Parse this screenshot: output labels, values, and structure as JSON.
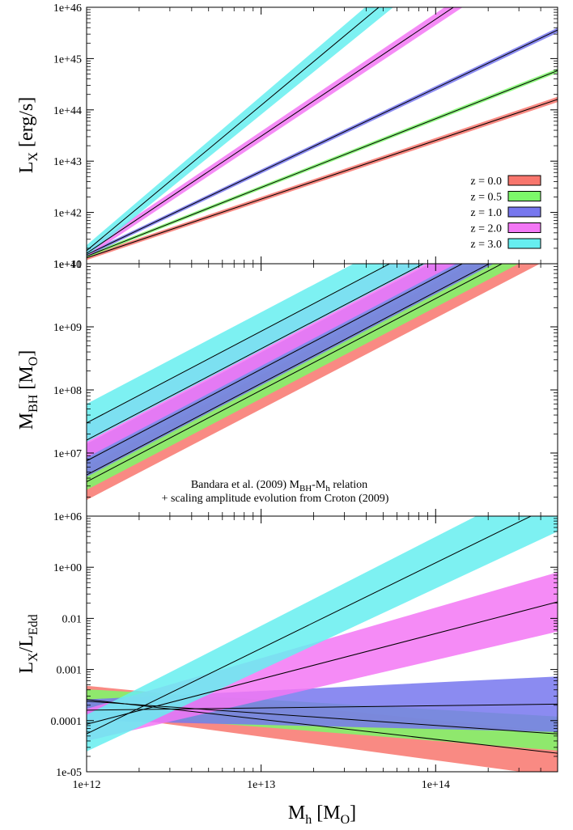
{
  "chart_data": [
    {
      "type": "line",
      "panel": "top",
      "ylabel": "L",
      "ylabel_sub": "X",
      "ylabel_rest": " [erg/s]",
      "xscale": "log",
      "yscale": "log",
      "xlim": [
        1000000000000.0,
        500000000000000.0
      ],
      "ylim": [
        1e+41,
        1e+46
      ],
      "yticks": [
        "1e+41",
        "1e+42",
        "1e+43",
        "1e+44",
        "1e+45",
        "1e+46"
      ],
      "legend_position": "bottom-right",
      "series": [
        {
          "name": "z = 0.0",
          "color": "#f8766d",
          "x": [
            1000000000000.0,
            500000000000000.0
          ],
          "y": [
            1.3e+41,
            1.6e+44
          ],
          "y_low": [
            1.18e+41,
            1.42e+44
          ],
          "y_high": [
            1.42e+41,
            1.8e+44
          ]
        },
        {
          "name": "z = 0.5",
          "color": "#7cf86a",
          "x": [
            1000000000000.0,
            500000000000000.0
          ],
          "y": [
            1.4e+41,
            5.8e+44
          ],
          "y_low": [
            1.3e+41,
            5.3e+44
          ],
          "y_high": [
            1.5e+41,
            6.4e+44
          ]
        },
        {
          "name": "z = 1.0",
          "color": "#7777ee",
          "x": [
            1000000000000.0,
            500000000000000.0
          ],
          "y": [
            1.5e+41,
            3.6e+45
          ],
          "y_low": [
            1.38e+41,
            3.2e+45
          ],
          "y_high": [
            1.62e+41,
            4e+45
          ]
        },
        {
          "name": "z = 2.0",
          "color": "#f377f5",
          "x": [
            1000000000000.0,
            500000000000000.0
          ],
          "y": [
            1.6e+41,
            2.3e+47
          ],
          "y_low": [
            1.35e+41,
            1.7e+47
          ],
          "y_high": [
            1.9e+41,
            3.1e+47
          ]
        },
        {
          "name": "z = 3.0",
          "color": "#66eef0",
          "x": [
            1000000000000.0,
            500000000000000.0
          ],
          "y": [
            1.8e+41,
            8e+48
          ],
          "y_low": [
            1.4e+41,
            4e+48
          ],
          "y_high": [
            2.3e+41,
            1.6e+49
          ]
        }
      ]
    },
    {
      "type": "line",
      "panel": "middle",
      "ylabel": "M",
      "ylabel_sub": "BH",
      "ylabel_rest": " [M",
      "ylabel_sub2": "O",
      "ylabel_end": "]",
      "xscale": "log",
      "yscale": "log",
      "xlim": [
        1000000000000.0,
        500000000000000.0
      ],
      "ylim": [
        1000000.0,
        10000000000.0
      ],
      "yticks": [
        "1e+06",
        "1e+07",
        "1e+08",
        "1e+09",
        "1e+10"
      ],
      "annotation_line1_pre": "Bandara et al. (2009) M",
      "annotation_line1_sub1": "BH",
      "annotation_line1_mid": "-M",
      "annotation_line1_sub2": "h",
      "annotation_line1_post": " relation",
      "annotation_line2": "+ scaling amplitude evolution from Croton (2009)",
      "series": [
        {
          "name": "z = 0.0",
          "color": "#f8766d",
          "x": [
            1000000000000.0,
            500000000000000.0
          ],
          "y": [
            3500000.0,
            29000000000.0
          ],
          "y_low": [
            1800000.0,
            14000000000.0
          ],
          "y_high": [
            6000000.0,
            52000000000.0
          ]
        },
        {
          "name": "z = 0.5",
          "color": "#7cf86a",
          "x": [
            1000000000000.0,
            500000000000000.0
          ],
          "y": [
            4500000.0,
            37000000000.0
          ],
          "y_low": [
            2600000.0,
            21000000000.0
          ],
          "y_high": [
            8000000.0,
            66000000000.0
          ]
        },
        {
          "name": "z = 1.0",
          "color": "#7777ee",
          "x": [
            1000000000000.0,
            500000000000000.0
          ],
          "y": [
            7500000.0,
            62000000000.0
          ],
          "y_low": [
            4200000.0,
            34000000000.0
          ],
          "y_high": [
            14000000.0,
            115000000000.0
          ]
        },
        {
          "name": "z = 2.0",
          "color": "#f377f5",
          "x": [
            1000000000000.0,
            500000000000000.0
          ],
          "y": [
            16000000.0,
            130000000000.0
          ],
          "y_low": [
            8500000.0,
            70000000000.0
          ],
          "y_high": [
            30000000.0,
            240000000000.0
          ]
        },
        {
          "name": "z = 3.0",
          "color": "#66eef0",
          "x": [
            1000000000000.0,
            500000000000000.0
          ],
          "y": [
            30000000.0,
            250000000000.0
          ],
          "y_low": [
            15000000.0,
            125000000000.0
          ],
          "y_high": [
            60000000.0,
            500000000000.0
          ]
        }
      ]
    },
    {
      "type": "line",
      "panel": "bottom",
      "ylabel": "L",
      "ylabel_sub": "X",
      "ylabel_rest": "/L",
      "ylabel_sub2": "Edd",
      "xlabel": "M",
      "xlabel_sub": "h",
      "xlabel_rest": " [M",
      "xlabel_sub2": "O",
      "xlabel_end": "]",
      "xscale": "log",
      "yscale": "log",
      "xlim": [
        1000000000000.0,
        500000000000000.0
      ],
      "ylim": [
        1e-05,
        1
      ],
      "xticks": [
        "1e+12",
        "1e+13",
        "1e+14"
      ],
      "yticks": [
        "1e-05",
        "0.0001",
        "0.001",
        "0.01",
        "1e+00"
      ],
      "series": [
        {
          "name": "z = 0.0",
          "color": "#f8766d",
          "x": [
            1000000000000.0,
            500000000000000.0
          ],
          "y": [
            0.00026,
            2.3e-05
          ],
          "y_low": [
            0.00014,
            8e-06
          ],
          "y_high": [
            0.00048,
            6e-05
          ]
        },
        {
          "name": "z = 0.5",
          "color": "#7cf86a",
          "x": [
            1000000000000.0,
            500000000000000.0
          ],
          "y": [
            0.00024,
            5.5e-05
          ],
          "y_low": [
            0.00014,
            2.6e-05
          ],
          "y_high": [
            0.00041,
            0.00012
          ]
        },
        {
          "name": "z = 1.0",
          "color": "#7777ee",
          "x": [
            1000000000000.0,
            500000000000000.0
          ],
          "y": [
            0.00016,
            0.00021
          ],
          "y_low": [
            0.0001,
            6e-05
          ],
          "y_high": [
            0.00026,
            0.00073
          ]
        },
        {
          "name": "z = 2.0",
          "color": "#f377f5",
          "x": [
            1000000000000.0,
            500000000000000.0
          ],
          "y": [
            8.5e-05,
            0.021
          ],
          "y_low": [
            4e-05,
            0.0055
          ],
          "y_high": [
            0.00017,
            0.08
          ]
        },
        {
          "name": "z = 3.0",
          "color": "#66eef0",
          "x": [
            1000000000000.0,
            500000000000000.0
          ],
          "y": [
            5.5e-05,
            1.8
          ],
          "y_low": [
            2.5e-05,
            0.5
          ],
          "y_high": [
            0.00013,
            6.5
          ]
        }
      ]
    }
  ]
}
